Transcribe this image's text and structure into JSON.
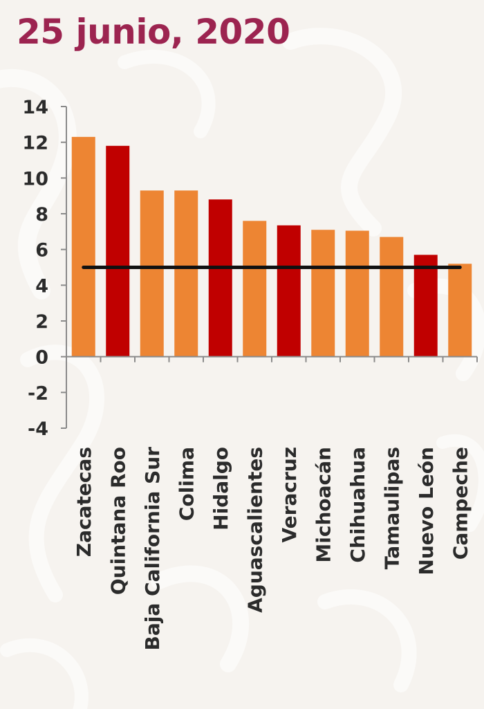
{
  "title": "25 junio, 2020",
  "colors": {
    "title": "#9c2450",
    "bar_orange": "#ed8533",
    "bar_red": "#c00000",
    "reference_line": "#111111",
    "axis": "#8a8a8a",
    "background": "#f6f3ef"
  },
  "chart_data": {
    "type": "bar",
    "categories": [
      "Zacatecas",
      "Quintana Roo",
      "Baja California Sur",
      "Colima",
      "Hidalgo",
      "Aguascalientes",
      "Veracruz",
      "Michoacán",
      "Chihuahua",
      "Tamaulipas",
      "Nuevo León",
      "Campeche"
    ],
    "values": [
      12.3,
      11.8,
      9.3,
      9.3,
      8.8,
      7.6,
      7.35,
      7.1,
      7.05,
      6.7,
      5.7,
      5.2
    ],
    "bar_colors": [
      "orange",
      "red",
      "orange",
      "orange",
      "red",
      "orange",
      "red",
      "orange",
      "orange",
      "orange",
      "red",
      "orange"
    ],
    "reference_line_value": 5,
    "ylim": [
      -4,
      14
    ],
    "yticks": [
      14,
      12,
      10,
      8,
      6,
      4,
      2,
      0,
      -2,
      -4
    ],
    "ytick_labels": [
      "14",
      "12",
      "10",
      "8",
      "6",
      "4",
      "2",
      "0",
      "-2",
      "-4"
    ],
    "xlabel": "",
    "ylabel": "",
    "grid": false,
    "legend": "none"
  }
}
